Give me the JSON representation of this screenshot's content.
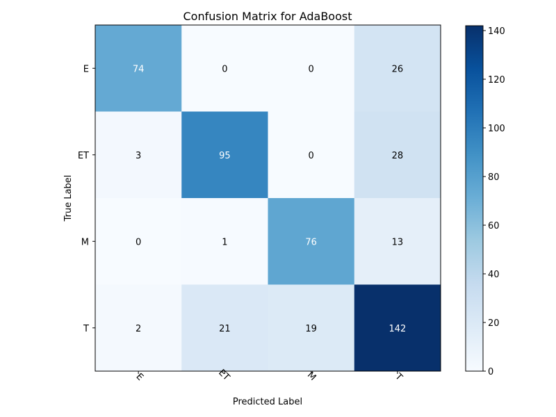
{
  "chart_data": {
    "type": "heatmap",
    "title": "Confusion Matrix for AdaBoost",
    "xlabel": "Predicted Label",
    "ylabel": "True Label",
    "x_categories": [
      "E",
      "ET",
      "M",
      "T"
    ],
    "y_categories": [
      "E",
      "ET",
      "M",
      "T"
    ],
    "values": [
      [
        74,
        0,
        0,
        26
      ],
      [
        3,
        95,
        0,
        28
      ],
      [
        0,
        1,
        76,
        13
      ],
      [
        2,
        21,
        19,
        142
      ]
    ],
    "colormap": "Blues",
    "color_range": [
      0,
      142
    ],
    "colorbar_ticks": [
      0,
      20,
      40,
      60,
      80,
      100,
      120,
      140
    ],
    "text_threshold": 71,
    "text_color_dark": "#000000",
    "text_color_light": "#ffffff",
    "x_tick_rotation_deg": 45,
    "grid": false
  }
}
